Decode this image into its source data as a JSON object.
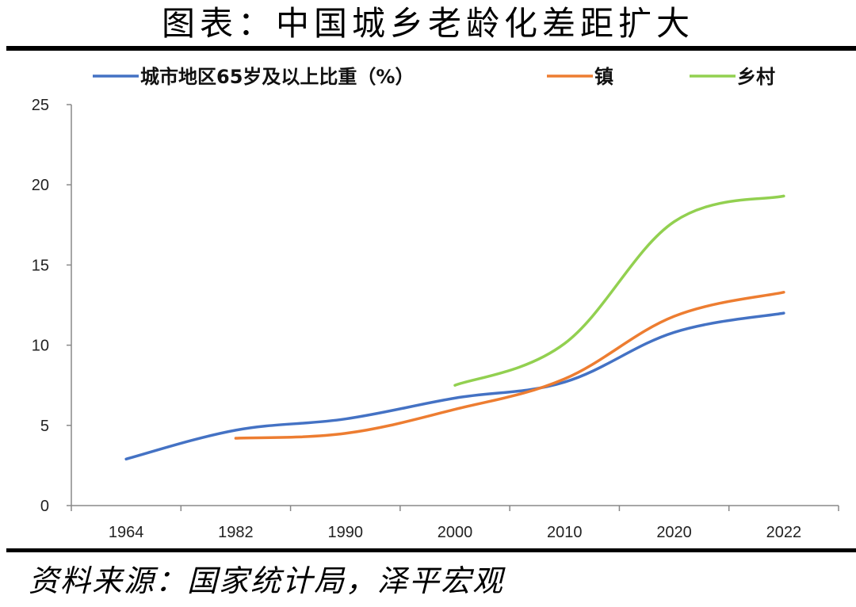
{
  "title": "图表：中国城乡老龄化差距扩大",
  "source": "资料来源：国家统计局，泽平宏观",
  "chart_data": {
    "type": "line",
    "categories": [
      "1964",
      "1982",
      "1990",
      "2000",
      "2010",
      "2020",
      "2022"
    ],
    "ylim": [
      0,
      25
    ],
    "yticks": [
      "0",
      "5",
      "10",
      "15",
      "20",
      "25"
    ],
    "grid": false,
    "legend_position": "top",
    "series": [
      {
        "name": "城市地区65岁及以上比重（%）",
        "color": "#4472C4",
        "values": [
          2.9,
          4.7,
          5.4,
          6.7,
          7.7,
          10.8,
          12.0
        ]
      },
      {
        "name": "镇",
        "color": "#ED7D31",
        "values": [
          null,
          4.2,
          4.5,
          6.0,
          7.9,
          11.8,
          13.3
        ]
      },
      {
        "name": "乡村",
        "color": "#92D050",
        "values": [
          null,
          null,
          null,
          7.5,
          10.1,
          17.7,
          19.3
        ]
      }
    ]
  }
}
